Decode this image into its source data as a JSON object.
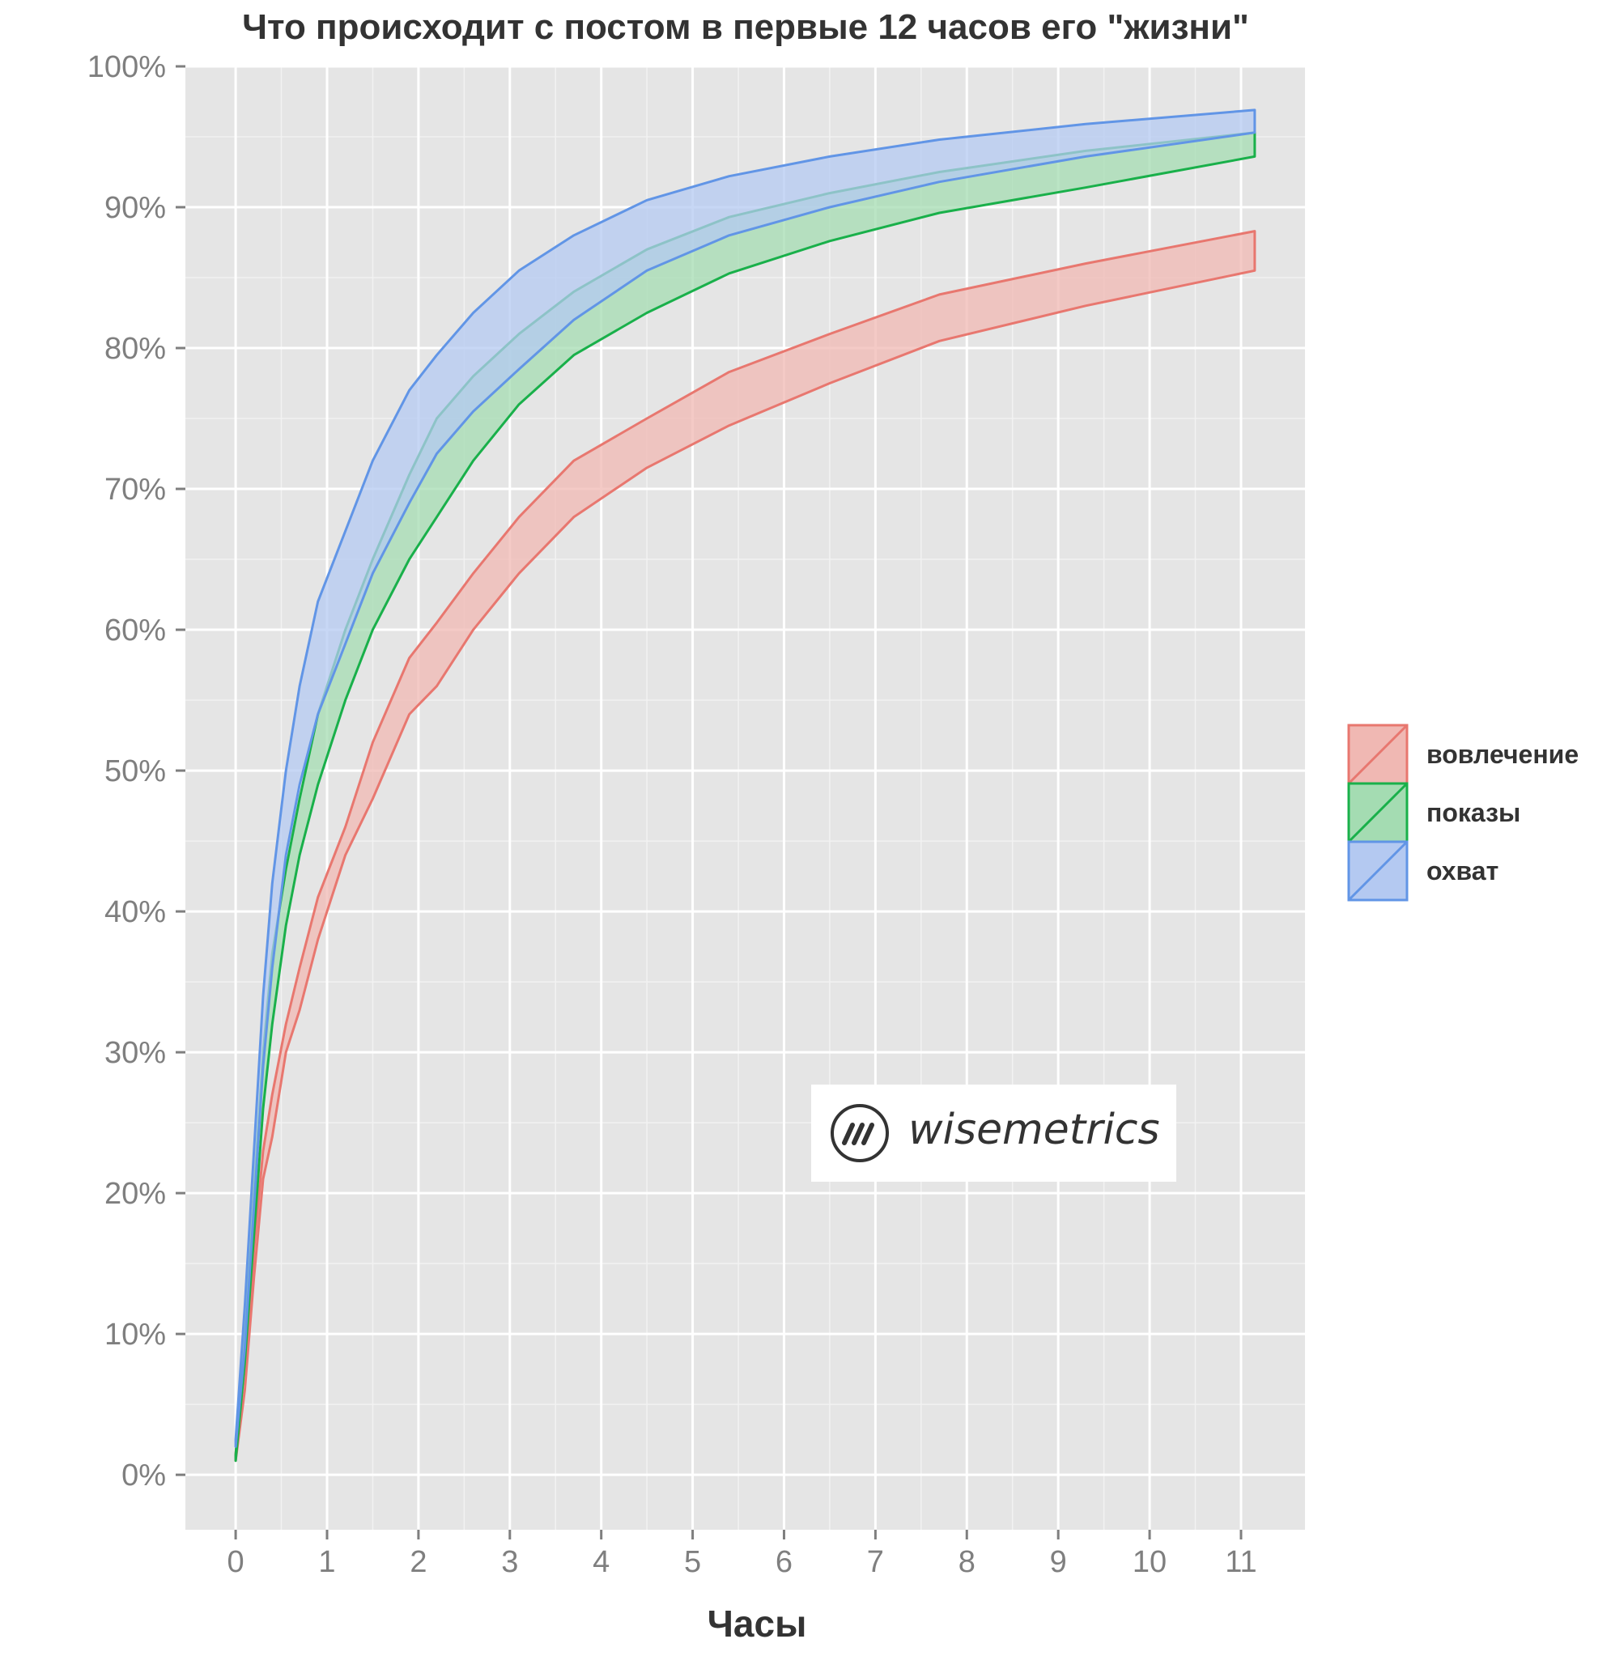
{
  "chart_data": {
    "type": "area",
    "title": "Что происходит с постом в первые 12 часов его \"жизни\"",
    "xlabel": "Часы",
    "ylabel": "",
    "xlim": [
      -0.55,
      11.7
    ],
    "ylim": [
      -3.9,
      100
    ],
    "xticks": [
      0,
      1,
      2,
      3,
      4,
      5,
      6,
      7,
      8,
      9,
      10,
      11
    ],
    "xtick_labels": [
      "0",
      "1",
      "2",
      "3",
      "4",
      "5",
      "6",
      "7",
      "8",
      "9",
      "10",
      "11"
    ],
    "yticks": [
      0,
      10,
      20,
      30,
      40,
      50,
      60,
      70,
      80,
      90,
      100
    ],
    "ytick_labels": [
      "0%",
      "10%",
      "20%",
      "30%",
      "40%",
      "50%",
      "60%",
      "70%",
      "80%",
      "90%",
      "100%"
    ],
    "grid": true,
    "legend_position": "right",
    "series": [
      {
        "name": "вовлечение",
        "color": "#e8776f",
        "fill": "#f0b8b3",
        "x": [
          0,
          0.1,
          0.2,
          0.3,
          0.4,
          0.55,
          0.7,
          0.9,
          1.2,
          1.5,
          1.9,
          2.2,
          2.6,
          3.1,
          3.7,
          4.5,
          5.4,
          6.5,
          7.7,
          9.3,
          11.15
        ],
        "lower": [
          1,
          6,
          14,
          21,
          24,
          30,
          33,
          38,
          44,
          48,
          54,
          56,
          60,
          64,
          68,
          71.5,
          74.5,
          77.5,
          80.5,
          83,
          85.5
        ],
        "upper": [
          1.5,
          8,
          16,
          23,
          27,
          32,
          36,
          41,
          46,
          52,
          58,
          60.5,
          64,
          68,
          72,
          75,
          78.3,
          81,
          83.8,
          86,
          88.3
        ]
      },
      {
        "name": "показы",
        "color": "#19b04a",
        "fill": "#a4dcb2",
        "x": [
          0,
          0.1,
          0.2,
          0.3,
          0.4,
          0.55,
          0.7,
          0.9,
          1.2,
          1.5,
          1.9,
          2.2,
          2.6,
          3.1,
          3.7,
          4.5,
          5.4,
          6.5,
          7.7,
          9.3,
          11.15
        ],
        "lower": [
          1,
          8,
          17,
          26,
          32,
          39,
          44,
          49,
          55,
          60,
          65,
          68,
          72,
          76,
          79.5,
          82.5,
          85.3,
          87.6,
          89.6,
          91.4,
          93.6
        ],
        "upper": [
          1.4,
          10,
          20,
          30,
          37,
          43,
          48,
          54,
          60,
          65,
          71,
          75,
          78,
          81,
          84,
          87,
          89.3,
          91,
          92.5,
          94,
          95.3
        ]
      },
      {
        "name": "охват",
        "color": "#6195e6",
        "fill": "#b4c9f1",
        "x": [
          0,
          0.1,
          0.2,
          0.3,
          0.4,
          0.55,
          0.7,
          0.9,
          1.2,
          1.5,
          1.9,
          2.2,
          2.6,
          3.1,
          3.7,
          4.5,
          5.4,
          6.5,
          7.7,
          9.3,
          11.15
        ],
        "lower": [
          2,
          9,
          19,
          29,
          36,
          44,
          49,
          54,
          59,
          64,
          69,
          72.5,
          75.5,
          78.5,
          82,
          85.5,
          88,
          90,
          91.8,
          93.6,
          95.3
        ],
        "upper": [
          2.5,
          12,
          23,
          34,
          42,
          50,
          56,
          62,
          67,
          72,
          77,
          79.5,
          82.5,
          85.5,
          88,
          90.5,
          92.2,
          93.6,
          94.8,
          95.9,
          96.9
        ]
      }
    ]
  },
  "watermark": {
    "text": "wisemetrics",
    "icon": "wisemetrics-logo-icon"
  }
}
